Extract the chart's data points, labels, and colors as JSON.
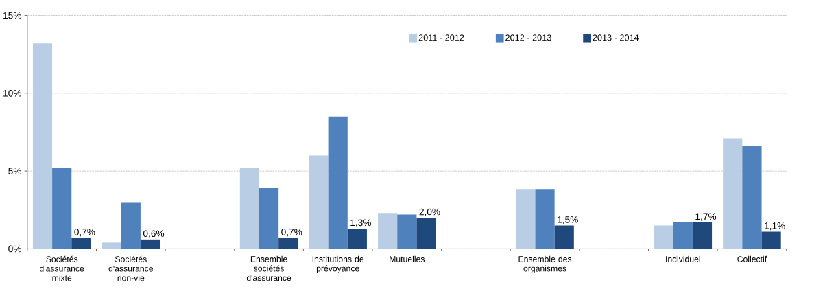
{
  "chart_data": {
    "type": "bar",
    "categories": [
      "Sociétés d'assurance mixte",
      "Sociétés d'assurance non-vie",
      null,
      "Ensemble sociétés d'assurance",
      "Institutions de prévoyance",
      "Mutuelles",
      null,
      "Ensemble des organismes",
      null,
      "Individuel",
      "Collectif"
    ],
    "series": [
      {
        "name": "2011 - 2012",
        "color": "#b9cde5",
        "values": [
          13.2,
          0.4,
          null,
          5.2,
          6.0,
          2.3,
          null,
          3.8,
          null,
          1.5,
          7.1
        ]
      },
      {
        "name": "2012 - 2013",
        "color": "#4f81bd",
        "values": [
          5.2,
          3.0,
          null,
          3.9,
          8.5,
          2.2,
          null,
          3.8,
          null,
          1.7,
          6.6
        ]
      },
      {
        "name": "2013 - 2014",
        "color": "#1f497d",
        "values": [
          0.7,
          0.6,
          null,
          0.7,
          1.3,
          2.0,
          null,
          1.5,
          null,
          1.7,
          1.1
        ],
        "value_labels": [
          "0,7%",
          "0,6%",
          null,
          "0,7%",
          "1,3%",
          "2,0%",
          null,
          "1,5%",
          null,
          "1,7%",
          "1,1%"
        ]
      }
    ],
    "ylim": [
      0,
      15
    ],
    "yticks": [
      {
        "value": 0,
        "label": "0%"
      },
      {
        "value": 5,
        "label": "5%"
      },
      {
        "value": 10,
        "label": "10%"
      },
      {
        "value": 15,
        "label": "15%"
      }
    ],
    "grid": "y",
    "legend": "top right"
  }
}
